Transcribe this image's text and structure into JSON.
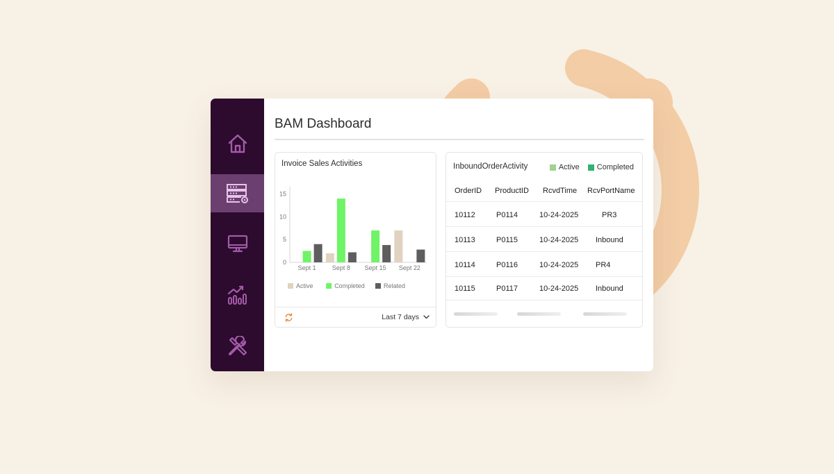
{
  "page": {
    "title": "BAM Dashboard"
  },
  "sidebar": {
    "items": [
      {
        "icon": "home-icon",
        "active": false
      },
      {
        "icon": "server-settings-icon",
        "active": true
      },
      {
        "icon": "monitor-icon",
        "active": false
      },
      {
        "icon": "analytics-icon",
        "active": false
      },
      {
        "icon": "tools-icon",
        "active": false
      }
    ]
  },
  "chart_card": {
    "title": "Invoice Sales Activities",
    "range_label": "Last 7 days"
  },
  "chart_data": {
    "type": "bar",
    "categories": [
      "Sept 1",
      "Sept 8",
      "Sept 15",
      "Sept 22"
    ],
    "series": [
      {
        "name": "Active",
        "color": "#e0d3c0",
        "values": [
          0,
          2,
          0,
          7
        ]
      },
      {
        "name": "Completed",
        "color": "#6ff367",
        "values": [
          2.5,
          14,
          7,
          0
        ]
      },
      {
        "name": "Related",
        "color": "#5e5e5e",
        "values": [
          4,
          2.2,
          3.8,
          2.8
        ]
      }
    ],
    "yticks": [
      0,
      5,
      10,
      15
    ],
    "ylim": [
      0,
      16
    ],
    "legend": "bottom",
    "grid": false
  },
  "table_card": {
    "title": "InboundOrderActivity",
    "legend": [
      {
        "label": "Active",
        "color": "#a3d18f"
      },
      {
        "label": "Completed",
        "color": "#2fb36e"
      }
    ],
    "columns": [
      "OrderID",
      "ProductID",
      "RcvdTime",
      "RcvPortName"
    ],
    "rows": [
      [
        "10112",
        "P0114",
        "10-24-2025",
        "PR3"
      ],
      [
        "10113",
        "P0115",
        "10-24-2025",
        "Inbound"
      ],
      [
        "10114",
        "P0116",
        "10-24-2025",
        "PR4"
      ],
      [
        "10115",
        "P0117",
        "10-24-2025",
        "Inbound"
      ]
    ]
  },
  "colors": {
    "background": "#f8f1e6",
    "sidebar": "#2c0b2e",
    "sidebar_active": "#6b3f6f",
    "sidebar_icon": "#a35ba8",
    "sidebar_icon_active": "#e8c4ea",
    "accent_orange": "#e8893b",
    "deco_peach": "#f3cda6"
  }
}
